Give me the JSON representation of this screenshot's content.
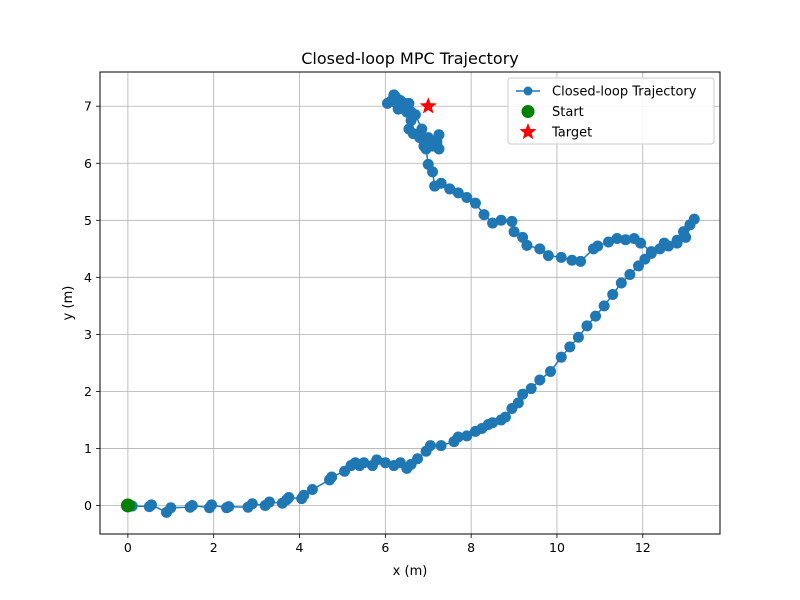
{
  "chart_data": {
    "type": "scatter",
    "title": "Closed-loop MPC Trajectory",
    "xlabel": "x (m)",
    "ylabel": "y (m)",
    "xlim": [
      -0.65,
      13.8
    ],
    "ylim": [
      -0.5,
      7.6
    ],
    "xticks": [
      0,
      2,
      4,
      6,
      8,
      10,
      12
    ],
    "yticks": [
      0,
      1,
      2,
      3,
      4,
      5,
      6,
      7
    ],
    "grid": true,
    "legend_position": "top-right",
    "colors": {
      "trajectory": "#1f77b4",
      "start": "#008000",
      "target": "#ff0000"
    },
    "series": [
      {
        "name": "Closed-loop Trajectory",
        "style": "line-marker",
        "points": [
          [
            0.0,
            0.0
          ],
          [
            0.1,
            -0.01
          ],
          [
            0.5,
            -0.02
          ],
          [
            0.55,
            0.01
          ],
          [
            0.9,
            -0.12
          ],
          [
            1.0,
            -0.04
          ],
          [
            1.45,
            -0.03
          ],
          [
            1.5,
            0.0
          ],
          [
            1.9,
            -0.04
          ],
          [
            1.95,
            0.01
          ],
          [
            2.3,
            -0.04
          ],
          [
            2.35,
            -0.02
          ],
          [
            2.8,
            -0.03
          ],
          [
            2.9,
            0.03
          ],
          [
            3.2,
            0.0
          ],
          [
            3.3,
            0.06
          ],
          [
            3.6,
            0.04
          ],
          [
            3.7,
            0.1
          ],
          [
            3.75,
            0.14
          ],
          [
            4.05,
            0.12
          ],
          [
            4.1,
            0.18
          ],
          [
            4.3,
            0.28
          ],
          [
            4.7,
            0.45
          ],
          [
            4.75,
            0.5
          ],
          [
            5.05,
            0.6
          ],
          [
            5.2,
            0.7
          ],
          [
            5.3,
            0.75
          ],
          [
            5.4,
            0.7
          ],
          [
            5.5,
            0.75
          ],
          [
            5.7,
            0.7
          ],
          [
            5.8,
            0.8
          ],
          [
            6.0,
            0.75
          ],
          [
            6.2,
            0.7
          ],
          [
            6.35,
            0.75
          ],
          [
            6.5,
            0.65
          ],
          [
            6.6,
            0.72
          ],
          [
            6.75,
            0.82
          ],
          [
            6.95,
            0.95
          ],
          [
            7.05,
            1.05
          ],
          [
            7.3,
            1.05
          ],
          [
            7.6,
            1.12
          ],
          [
            7.7,
            1.2
          ],
          [
            7.9,
            1.22
          ],
          [
            8.1,
            1.3
          ],
          [
            8.25,
            1.35
          ],
          [
            8.4,
            1.42
          ],
          [
            8.5,
            1.45
          ],
          [
            8.7,
            1.5
          ],
          [
            8.8,
            1.55
          ],
          [
            8.95,
            1.7
          ],
          [
            9.1,
            1.8
          ],
          [
            9.2,
            1.95
          ],
          [
            9.4,
            2.05
          ],
          [
            9.6,
            2.2
          ],
          [
            9.85,
            2.35
          ],
          [
            10.1,
            2.6
          ],
          [
            10.3,
            2.78
          ],
          [
            10.5,
            2.95
          ],
          [
            10.7,
            3.15
          ],
          [
            10.9,
            3.32
          ],
          [
            11.1,
            3.5
          ],
          [
            11.3,
            3.7
          ],
          [
            11.5,
            3.9
          ],
          [
            11.7,
            4.05
          ],
          [
            11.9,
            4.2
          ],
          [
            12.05,
            4.32
          ],
          [
            12.2,
            4.42
          ],
          [
            12.4,
            4.5
          ],
          [
            12.6,
            4.55
          ],
          [
            12.8,
            4.65
          ],
          [
            12.95,
            4.8
          ],
          [
            13.1,
            4.92
          ],
          [
            13.2,
            5.02
          ],
          [
            13.0,
            4.7
          ],
          [
            12.8,
            4.6
          ],
          [
            12.5,
            4.6
          ],
          [
            12.2,
            4.45
          ],
          [
            11.95,
            4.6
          ],
          [
            11.8,
            4.68
          ],
          [
            11.6,
            4.66
          ],
          [
            11.4,
            4.68
          ],
          [
            11.2,
            4.62
          ],
          [
            10.95,
            4.55
          ],
          [
            10.85,
            4.5
          ],
          [
            10.55,
            4.28
          ],
          [
            10.35,
            4.3
          ],
          [
            10.1,
            4.35
          ],
          [
            9.8,
            4.38
          ],
          [
            9.6,
            4.5
          ],
          [
            9.3,
            4.56
          ],
          [
            9.2,
            4.7
          ],
          [
            9.0,
            4.8
          ],
          [
            8.95,
            4.98
          ],
          [
            8.7,
            5.0
          ],
          [
            8.5,
            4.95
          ],
          [
            8.3,
            5.1
          ],
          [
            8.1,
            5.3
          ],
          [
            7.9,
            5.4
          ],
          [
            7.7,
            5.48
          ],
          [
            7.5,
            5.55
          ],
          [
            7.3,
            5.65
          ],
          [
            7.15,
            5.6
          ],
          [
            7.1,
            5.85
          ],
          [
            7.0,
            5.98
          ],
          [
            6.95,
            6.25
          ],
          [
            7.2,
            6.35
          ],
          [
            7.25,
            6.25
          ],
          [
            6.9,
            6.3
          ],
          [
            6.8,
            6.45
          ],
          [
            6.65,
            6.52
          ],
          [
            6.55,
            6.6
          ],
          [
            6.6,
            6.75
          ],
          [
            6.5,
            6.9
          ],
          [
            6.45,
            7.05
          ],
          [
            6.35,
            7.1
          ],
          [
            6.25,
            7.15
          ],
          [
            6.2,
            7.2
          ],
          [
            6.15,
            7.1
          ],
          [
            6.05,
            7.05
          ],
          [
            6.3,
            6.95
          ],
          [
            6.5,
            7.02
          ],
          [
            6.55,
            7.05
          ],
          [
            6.6,
            6.9
          ],
          [
            6.7,
            6.85
          ],
          [
            6.85,
            6.6
          ],
          [
            7.0,
            6.45
          ],
          [
            7.1,
            6.3
          ],
          [
            7.2,
            6.4
          ],
          [
            7.25,
            6.5
          ]
        ]
      },
      {
        "name": "Start",
        "style": "circle",
        "points": [
          [
            0.0,
            0.0
          ]
        ]
      },
      {
        "name": "Target",
        "style": "star",
        "points": [
          [
            7.0,
            7.0
          ]
        ]
      }
    ]
  }
}
